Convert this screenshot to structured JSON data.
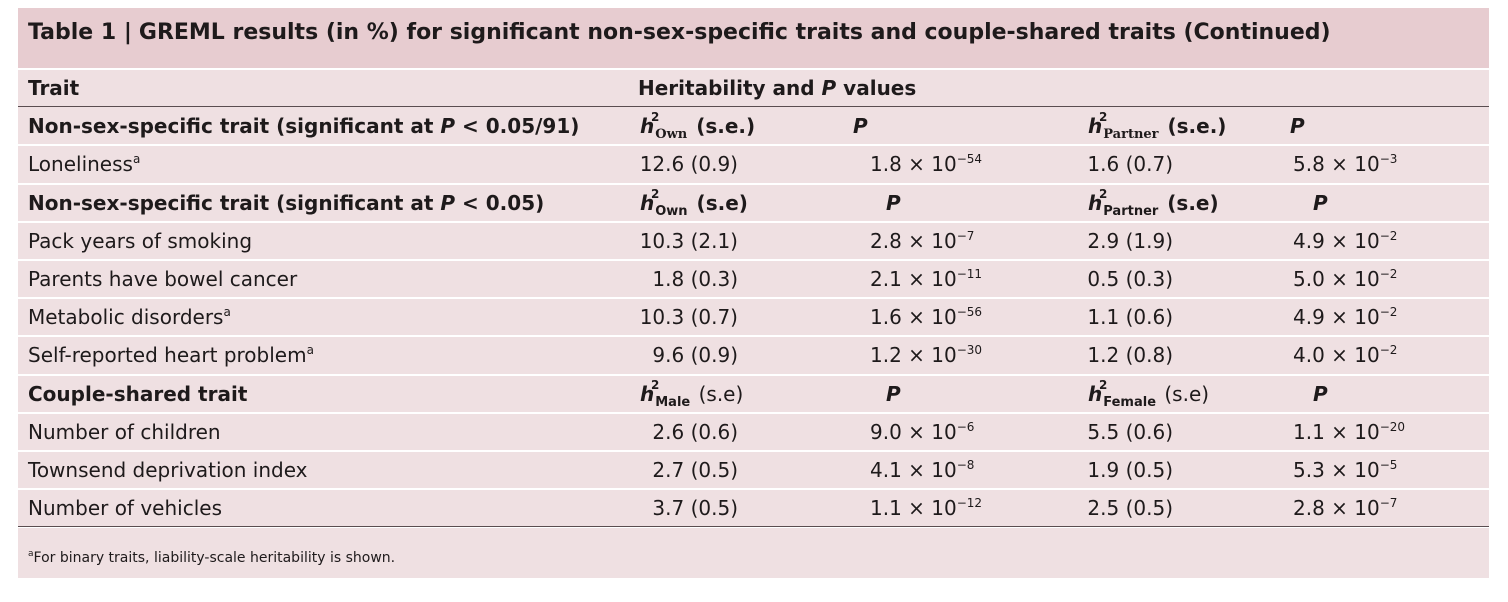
{
  "table": {
    "label": "Table 1 |",
    "title": "GREML results (in %) for significant non-sex-specific traits and couple-shared traits (Continued)",
    "col_trait": "Trait",
    "col_heritability": "Heritability and P values",
    "sections": [
      {
        "heading": "Non-sex-specific trait (significant at P < 0.05/91)",
        "h1_sub": "Own",
        "h1_se": "(s.e.)",
        "p1": "P",
        "h2_sub": "Partner",
        "h2_se": "(s.e.)",
        "p2": "P",
        "rows": [
          {
            "trait": "Loneliness",
            "note": "a",
            "h1": "12.6 (0.9)",
            "p1": "1.8 × 10",
            "p1_exp": "−54",
            "h2": "1.6 (0.7)",
            "p2": "5.8 × 10",
            "p2_exp": "−3"
          }
        ]
      },
      {
        "heading": "Non-sex-specific trait (significant at P < 0.05)",
        "h1_sub": "Own",
        "h1_se": "(s.e)",
        "p1": "P",
        "h2_sub": "Partner",
        "h2_se": "(s.e)",
        "p2": "P",
        "rows": [
          {
            "trait": "Pack years of smoking",
            "note": "",
            "h1": "10.3 (2.1)",
            "p1": "2.8 × 10",
            "p1_exp": "−7",
            "h2": "2.9 (1.9)",
            "p2": "4.9 × 10",
            "p2_exp": "−2"
          },
          {
            "trait": "Parents have bowel cancer",
            "note": "",
            "h1": "1.8 (0.3)",
            "p1": "2.1 × 10",
            "p1_exp": "−11",
            "h2": "0.5 (0.3)",
            "p2": "5.0 × 10",
            "p2_exp": "−2"
          },
          {
            "trait": "Metabolic disorders",
            "note": "a",
            "h1": "10.3 (0.7)",
            "p1": "1.6 × 10",
            "p1_exp": "−56",
            "h2": "1.1 (0.6)",
            "p2": "4.9 × 10",
            "p2_exp": "−2"
          },
          {
            "trait": "Self-reported heart problem",
            "note": "a",
            "h1": "9.6 (0.9)",
            "p1": "1.2 × 10",
            "p1_exp": "−30",
            "h2": "1.2 (0.8)",
            "p2": "4.0 × 10",
            "p2_exp": "−2"
          }
        ]
      },
      {
        "heading": "Couple-shared trait",
        "h1_sub": "Male",
        "h1_se": "(s.e)",
        "p1": "P",
        "h2_sub": "Female",
        "h2_se": "(s.e)",
        "p2": "P",
        "rows": [
          {
            "trait": "Number of children",
            "note": "",
            "h1": "2.6 (0.6)",
            "p1": "9.0 × 10",
            "p1_exp": "−6",
            "h2": "5.5 (0.6)",
            "p2": "1.1 × 10",
            "p2_exp": "−20"
          },
          {
            "trait": "Townsend deprivation index",
            "note": "",
            "h1": "2.7 (0.5)",
            "p1": "4.1 × 10",
            "p1_exp": "−8",
            "h2": "1.9 (0.5)",
            "p2": "5.3 × 10",
            "p2_exp": "−5"
          },
          {
            "trait": "Number of vehicles",
            "note": "",
            "h1": "3.7 (0.5)",
            "p1": "1.1 × 10",
            "p1_exp": "−12",
            "h2": "2.5 (0.5)",
            "p2": "2.8 × 10",
            "p2_exp": "−7"
          }
        ]
      }
    ],
    "footnote_mark": "a",
    "footnote": "For binary traits, liability-scale heritability is shown."
  }
}
